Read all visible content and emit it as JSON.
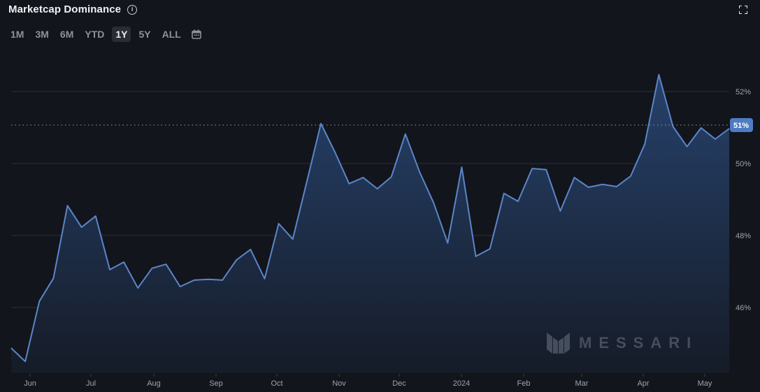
{
  "header": {
    "title": "Marketcap Dominance",
    "info_icon": "info-icon",
    "fullscreen_icon": "fullscreen-icon"
  },
  "time_ranges": {
    "items": [
      "1M",
      "3M",
      "6M",
      "YTD",
      "1Y",
      "5Y",
      "ALL"
    ],
    "selected": "1Y",
    "calendar_icon": "calendar-icon"
  },
  "current_value_badge": "51%",
  "watermark": "MESSARI",
  "colors": {
    "background": "#13151c",
    "line": "#5b86c9",
    "area_top": "#274470",
    "area_bottom": "#161c28",
    "badge": "#4f7bc4",
    "grid": "#2a2e38"
  },
  "chart_data": {
    "type": "area",
    "title": "Marketcap Dominance",
    "xlabel": "",
    "ylabel": "",
    "y_unit": "%",
    "ylim": [
      44.2,
      52.6
    ],
    "yticks": [
      "52%",
      "50%",
      "48%",
      "46%"
    ],
    "ytick_values": [
      52,
      50,
      48,
      46
    ],
    "xticks": [
      "Jun",
      "Jul",
      "Aug",
      "Sep",
      "Oct",
      "Nov",
      "Dec",
      "2024",
      "Feb",
      "Mar",
      "Apr",
      "May"
    ],
    "grid": true,
    "legend": null,
    "current_value": 51.0,
    "current_value_label": "51%",
    "series": [
      {
        "name": "Marketcap Dominance",
        "values": [
          44.87,
          44.5,
          46.17,
          46.81,
          48.83,
          48.23,
          48.54,
          47.05,
          47.26,
          46.54,
          47.09,
          47.2,
          46.58,
          46.76,
          46.78,
          46.76,
          47.32,
          47.61,
          46.8,
          48.33,
          47.9,
          49.5,
          51.11,
          50.31,
          49.44,
          49.61,
          49.3,
          49.63,
          50.82,
          49.77,
          48.91,
          47.79,
          49.9,
          47.42,
          47.63,
          49.17,
          48.95,
          49.86,
          49.83,
          48.68,
          49.61,
          49.34,
          49.42,
          49.36,
          49.65,
          50.54,
          52.47,
          51.03,
          50.47,
          50.99,
          50.68,
          50.97
        ]
      }
    ]
  }
}
